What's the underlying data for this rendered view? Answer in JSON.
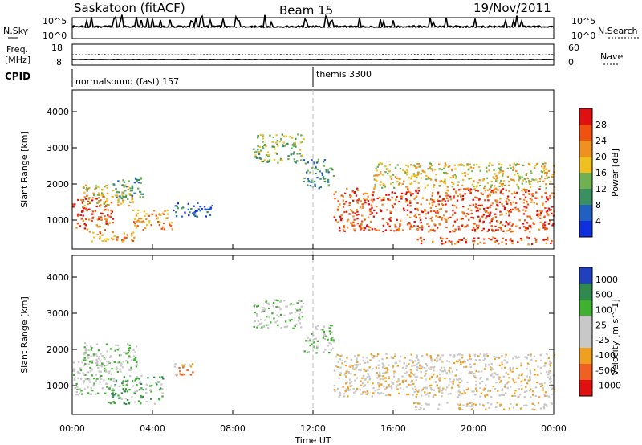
{
  "header": {
    "title": "Saskatoon (fitACF)",
    "beam": "Beam 15",
    "date": "19/Nov/2011"
  },
  "status_panels": {
    "nsky_label": "N.Sky",
    "nsearch_label": "N.Search",
    "freq_label": "Freq.",
    "freq_unit": "[MHz]",
    "nave_label": "Nave",
    "cpid_label": "CPID",
    "nsky_ticks": [
      "10^5",
      "10^0"
    ],
    "nsearch_ticks": [
      "10^5",
      "10^0"
    ],
    "freq_ticks": [
      "18",
      "8"
    ],
    "nave_ticks": [
      "60",
      "0"
    ],
    "cpid_segments": [
      {
        "label": "normalsound (fast) 157",
        "start_hour": 0
      },
      {
        "label": "themis 3300",
        "start_hour": 12
      }
    ]
  },
  "colors": {
    "power_scale": [
      "#1030e0",
      "#2060c0",
      "#3a9060",
      "#70b050",
      "#f0c020",
      "#f09020",
      "#f05010",
      "#e01010"
    ],
    "velocity_scale": [
      "#2040c0",
      "#308a50",
      "#40b030",
      "#c8c8c8",
      "#c8c8c8",
      "#f0a020",
      "#f06020",
      "#e01010"
    ]
  },
  "chart_data": [
    {
      "type": "heatmap",
      "panel": "power",
      "ylabel": "Slant Range [km]",
      "xlabel": "",
      "xlim": [
        0,
        24
      ],
      "ylim": [
        200,
        4600
      ],
      "yticks": [
        1000,
        2000,
        3000,
        4000
      ],
      "colorbar_label": "Power [dB]",
      "colorbar_ticks": [
        "4",
        "8",
        "12",
        "16",
        "20",
        "24",
        "28"
      ],
      "bands": [
        {
          "t": [
            0.0,
            2.0
          ],
          "r": [
            750,
            1700
          ],
          "level": 6
        },
        {
          "t": [
            0.5,
            3.0
          ],
          "r": [
            1400,
            2000
          ],
          "level": 4
        },
        {
          "t": [
            2.0,
            3.5
          ],
          "r": [
            1600,
            2200
          ],
          "level": 2
        },
        {
          "t": [
            0.8,
            3.2
          ],
          "r": [
            400,
            700
          ],
          "level": 5
        },
        {
          "t": [
            3.0,
            5.0
          ],
          "r": [
            750,
            1300
          ],
          "level": 5
        },
        {
          "t": [
            5.0,
            7.0
          ],
          "r": [
            1100,
            1500
          ],
          "level": 1
        },
        {
          "t": [
            9.0,
            11.5
          ],
          "r": [
            2600,
            3400
          ],
          "level": 3
        },
        {
          "t": [
            11.5,
            13.0
          ],
          "r": [
            1900,
            2700
          ],
          "level": 2
        },
        {
          "t": [
            13.0,
            24.0
          ],
          "r": [
            700,
            1900
          ],
          "level": 6
        },
        {
          "t": [
            17.0,
            24.0
          ],
          "r": [
            350,
            550
          ],
          "level": 6
        },
        {
          "t": [
            15.0,
            24.0
          ],
          "r": [
            1900,
            2600
          ],
          "level": 4
        }
      ]
    },
    {
      "type": "heatmap",
      "panel": "velocity",
      "ylabel": "Slant Range [km]",
      "xlabel": "Time UT",
      "xlim": [
        0,
        24
      ],
      "ylim": [
        200,
        4600
      ],
      "yticks": [
        1000,
        2000,
        3000,
        4000
      ],
      "xticks": [
        "00:00",
        "04:00",
        "08:00",
        "12:00",
        "16:00",
        "20:00",
        "00:00"
      ],
      "colorbar_label": "Velocity [m s^-1]",
      "colorbar_ticks": [
        "1000",
        "500",
        "100",
        "25",
        "-25",
        "-100",
        "-500",
        "-1000"
      ],
      "bands": [
        {
          "t": [
            0.0,
            2.0
          ],
          "r": [
            750,
            1700
          ],
          "level": 3
        },
        {
          "t": [
            0.5,
            3.2
          ],
          "r": [
            1400,
            2200
          ],
          "level": 3
        },
        {
          "t": [
            1.8,
            4.5
          ],
          "r": [
            500,
            1300
          ],
          "level": 2
        },
        {
          "t": [
            5.0,
            6.0
          ],
          "r": [
            1300,
            1700
          ],
          "level": 5
        },
        {
          "t": [
            9.0,
            11.5
          ],
          "r": [
            2600,
            3400
          ],
          "level": 3
        },
        {
          "t": [
            11.5,
            13.0
          ],
          "r": [
            1900,
            2700
          ],
          "level": 3
        },
        {
          "t": [
            13.0,
            24.0
          ],
          "r": [
            700,
            1900
          ],
          "level": 4
        },
        {
          "t": [
            17.0,
            24.0
          ],
          "r": [
            350,
            550
          ],
          "level": 4
        }
      ]
    }
  ]
}
